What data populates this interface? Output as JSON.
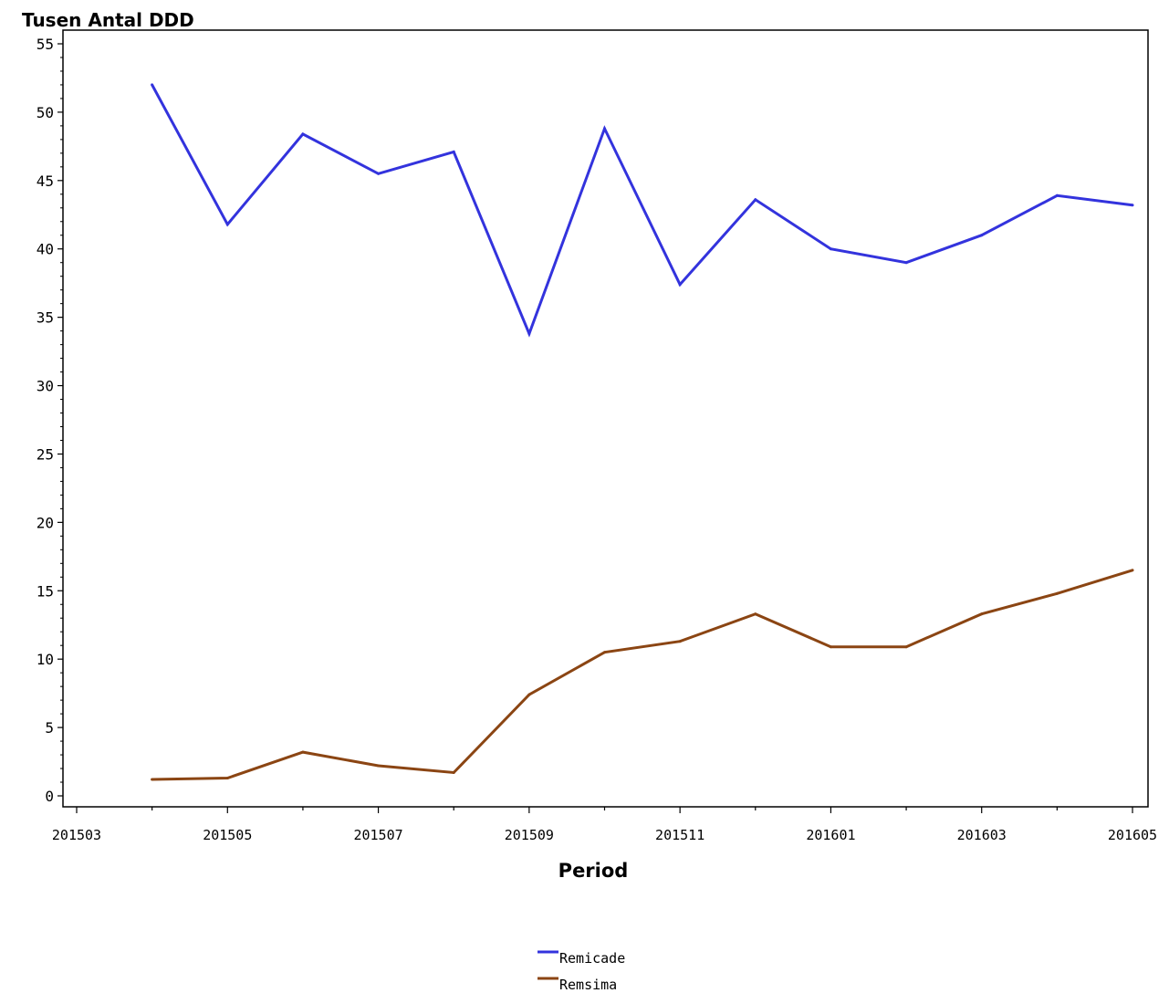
{
  "chart_data": {
    "type": "line",
    "xlabel": "Period",
    "ylabel": "Tusen Antal DDD",
    "ylim": [
      0,
      55
    ],
    "y_ticks": [
      0,
      5,
      10,
      15,
      20,
      25,
      30,
      35,
      40,
      45,
      50,
      55
    ],
    "x_ticks": [
      "201503",
      "201505",
      "201507",
      "201509",
      "201511",
      "201601",
      "201603",
      "201605"
    ],
    "x": [
      "201504",
      "201505",
      "201506",
      "201507",
      "201508",
      "201509",
      "201510",
      "201511",
      "201512",
      "201601",
      "201602",
      "201603",
      "201604",
      "201605"
    ],
    "series": [
      {
        "name": "Remicade",
        "color": "#3333dd",
        "values": [
          52.0,
          41.8,
          48.4,
          45.5,
          47.1,
          33.8,
          48.8,
          37.4,
          43.6,
          40.0,
          39.0,
          41.0,
          43.9,
          43.2
        ]
      },
      {
        "name": "Remsima",
        "color": "#8b4513",
        "values": [
          1.2,
          1.3,
          3.2,
          2.2,
          1.7,
          7.4,
          10.5,
          11.3,
          13.3,
          10.9,
          10.9,
          13.3,
          14.8,
          16.5
        ]
      }
    ],
    "grid": false,
    "legend_position": "bottom-center"
  }
}
